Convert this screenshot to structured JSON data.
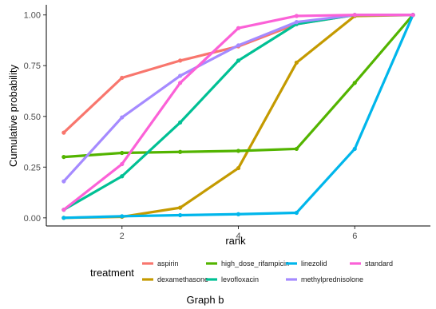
{
  "chart_data": {
    "type": "line",
    "xlabel": "rank",
    "ylabel": "Cumulative probability",
    "xlim": [
      0.7,
      7.3
    ],
    "ylim": [
      -0.04,
      1.05
    ],
    "x_ticks": [
      2,
      4,
      6
    ],
    "y_ticks": [
      0.0,
      0.25,
      0.5,
      0.75,
      1.0
    ],
    "y_tick_labels": [
      "0.00",
      "0.25",
      "0.50",
      "0.75",
      "1.00"
    ],
    "grid": false,
    "legend_title": "treatment",
    "legend_placement": "bottom",
    "x": [
      1,
      2,
      3,
      4,
      5,
      6,
      7
    ],
    "series": [
      {
        "name": "aspirin",
        "color": "#F8766D",
        "values": [
          0.42,
          0.69,
          0.775,
          0.845,
          0.955,
          1.0,
          1.0
        ]
      },
      {
        "name": "dexamethasone",
        "color": "#C49A00",
        "values": [
          0.0,
          0.005,
          0.05,
          0.245,
          0.765,
          0.995,
          1.0
        ]
      },
      {
        "name": "high_dose_rifampicin",
        "color": "#53B400",
        "values": [
          0.3,
          0.32,
          0.325,
          0.33,
          0.34,
          0.665,
          1.0
        ]
      },
      {
        "name": "levofloxacin",
        "color": "#00C094",
        "values": [
          0.04,
          0.205,
          0.47,
          0.775,
          0.955,
          1.0,
          1.0
        ]
      },
      {
        "name": "linezolid",
        "color": "#00B6EB",
        "values": [
          0.0,
          0.008,
          0.013,
          0.018,
          0.025,
          0.34,
          1.0
        ]
      },
      {
        "name": "methylprednisolone",
        "color": "#A58AFF",
        "values": [
          0.18,
          0.495,
          0.7,
          0.85,
          0.965,
          1.0,
          1.0
        ]
      },
      {
        "name": "standard",
        "color": "#FB61D7",
        "values": [
          0.04,
          0.265,
          0.665,
          0.935,
          0.995,
          1.0,
          1.0
        ]
      }
    ],
    "caption": "Graph b"
  }
}
